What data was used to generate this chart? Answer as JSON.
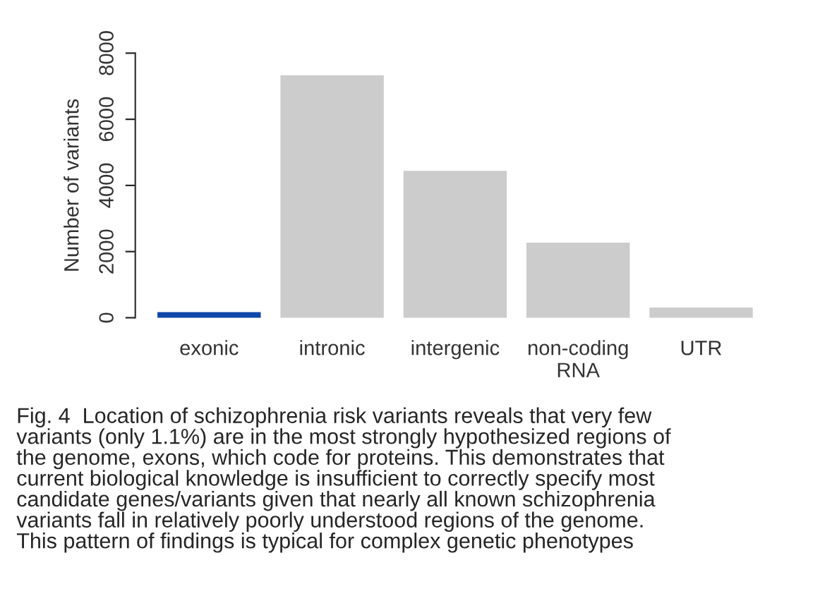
{
  "chart_data": {
    "type": "bar",
    "ylabel": "Number of variants",
    "categories": [
      "exonic",
      "intronic",
      "intergenic",
      "non-coding\nRNA",
      "UTR"
    ],
    "values": [
      170,
      7330,
      4440,
      2270,
      310
    ],
    "colors": [
      "#0f47a8",
      "#cccccd",
      "#cccccd",
      "#cccccd",
      "#cccccd"
    ],
    "ylim": [
      0,
      8000
    ],
    "yticks": [
      0,
      2000,
      4000,
      6000,
      8000
    ],
    "grid": false,
    "annotations": [
      "Fig. 4  Location of schizophrenia risk variants reveals that very few\nvariants (only 1.1%) are in the most strongly hypothesized regions of\nthe genome, exons, which code for proteins. This demonstrates that\ncurrent biological knowledge is insufficient to correctly specify most\ncandidate genes/variants given that nearly all known schizophrenia\nvariants fall in relatively poorly understood regions of the genome.\nThis pattern of findings is typical for complex genetic phenotypes"
    ]
  }
}
